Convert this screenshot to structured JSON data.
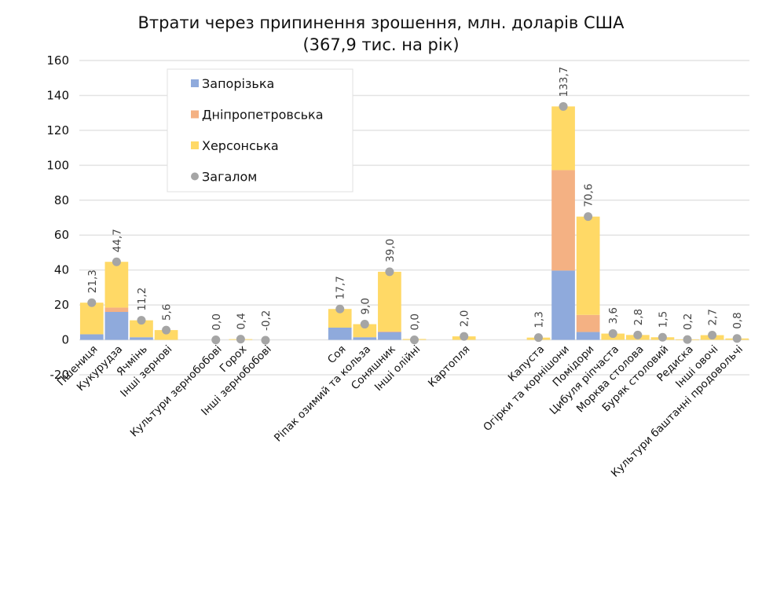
{
  "chart_data": {
    "type": "bar",
    "stacked": true,
    "title": "Втрати через припинення зрошення, млн. доларів США",
    "subtitle": "(367,9 тис. на рік)",
    "xlabel": "",
    "ylabel": "",
    "ylim": [
      -20,
      160
    ],
    "yticks": [
      -20,
      0,
      20,
      40,
      60,
      80,
      100,
      120,
      140,
      160
    ],
    "ytick_labels": [
      "-20",
      "0",
      "20",
      "40",
      "60",
      "80",
      "100",
      "120",
      "140",
      "160"
    ],
    "grid": true,
    "legend_position": "top-left",
    "slots": [
      "Пшениця",
      "Кукурудза",
      "Ячмінь",
      "Інші зернові",
      "",
      "Культури зернобобові",
      "Горох",
      "Інші зернобобові",
      "",
      "",
      "Соя",
      "Ріпак озимий та кользa",
      "Соняшник",
      "Інші олійні",
      "",
      "Картопля",
      "",
      "",
      "Капуста",
      "Огірки та корнішони",
      "Помідори",
      "Цибуля ріпчаста",
      "Морква столова",
      "Буряк столовий",
      "Редиска",
      "Інші овочі",
      "Культури баштанні продовольчі"
    ],
    "categories": [
      "Пшениця",
      "Кукурудза",
      "Ячмінь",
      "Інші зернові",
      "Культури зернобобові",
      "Горох",
      "Інші зернобобові",
      "Соя",
      "Ріпак озимий та кольза",
      "Соняшник",
      "Інші олійні",
      "Картопля",
      "Капуста",
      "Огірки та корнішони",
      "Помідори",
      "Цибуля ріпчаста",
      "Морква столова",
      "Буряк столовий",
      "Редиска",
      "Інші овочі",
      "Культури баштанні продовольчі"
    ],
    "slot_index": [
      0,
      1,
      2,
      3,
      5,
      6,
      7,
      10,
      11,
      12,
      13,
      15,
      18,
      19,
      20,
      21,
      22,
      23,
      24,
      25,
      26
    ],
    "series": [
      {
        "name": "Запорізька",
        "color": "#8faadc",
        "values": [
          3.2,
          16.0,
          1.5,
          0,
          0,
          0,
          0,
          7.0,
          1.5,
          4.5,
          0,
          0,
          0,
          39.7,
          4.5,
          0,
          0,
          0,
          0,
          0,
          0
        ]
      },
      {
        "name": "Дніпропетровська",
        "color": "#f4b183",
        "values": [
          0,
          2.5,
          0,
          0,
          0,
          0,
          0,
          0,
          0,
          0.3,
          0,
          0,
          0,
          57.5,
          9.8,
          0,
          0,
          0,
          0,
          0,
          0
        ]
      },
      {
        "name": "Херсонська",
        "color": "#ffd966",
        "values": [
          18.1,
          26.2,
          9.7,
          5.6,
          0,
          0.4,
          0,
          10.7,
          7.5,
          34.2,
          0.5,
          2.0,
          1.3,
          36.5,
          56.3,
          3.6,
          2.8,
          1.5,
          0.2,
          2.7,
          0.8
        ]
      },
      {
        "name": "Загалом",
        "type": "scatter",
        "color": "#a5a5a5",
        "values": [
          21.3,
          44.7,
          11.2,
          5.6,
          0.0,
          0.4,
          -0.2,
          17.7,
          9.0,
          39.0,
          0.0,
          2.0,
          1.3,
          133.7,
          70.6,
          3.6,
          2.8,
          1.5,
          0.2,
          2.7,
          0.8
        ],
        "labels": [
          "21,3",
          "44,7",
          "11,2",
          "5,6",
          "0,0",
          "0,4",
          "-0,2",
          "17,7",
          "9,0",
          "39,0",
          "0,0",
          "2,0",
          "1,3",
          "133,7",
          "70,6",
          "3,6",
          "2,8",
          "1,5",
          "0,2",
          "2,7",
          "0,8"
        ]
      }
    ],
    "legend": [
      {
        "label": "Запорізька",
        "marker": "square",
        "color": "#8faadc"
      },
      {
        "label": "Дніпропетровська",
        "marker": "square",
        "color": "#f4b183"
      },
      {
        "label": "Херсонська",
        "marker": "square",
        "color": "#ffd966"
      },
      {
        "label": "Загалом",
        "marker": "circle",
        "color": "#a5a5a5"
      }
    ]
  }
}
